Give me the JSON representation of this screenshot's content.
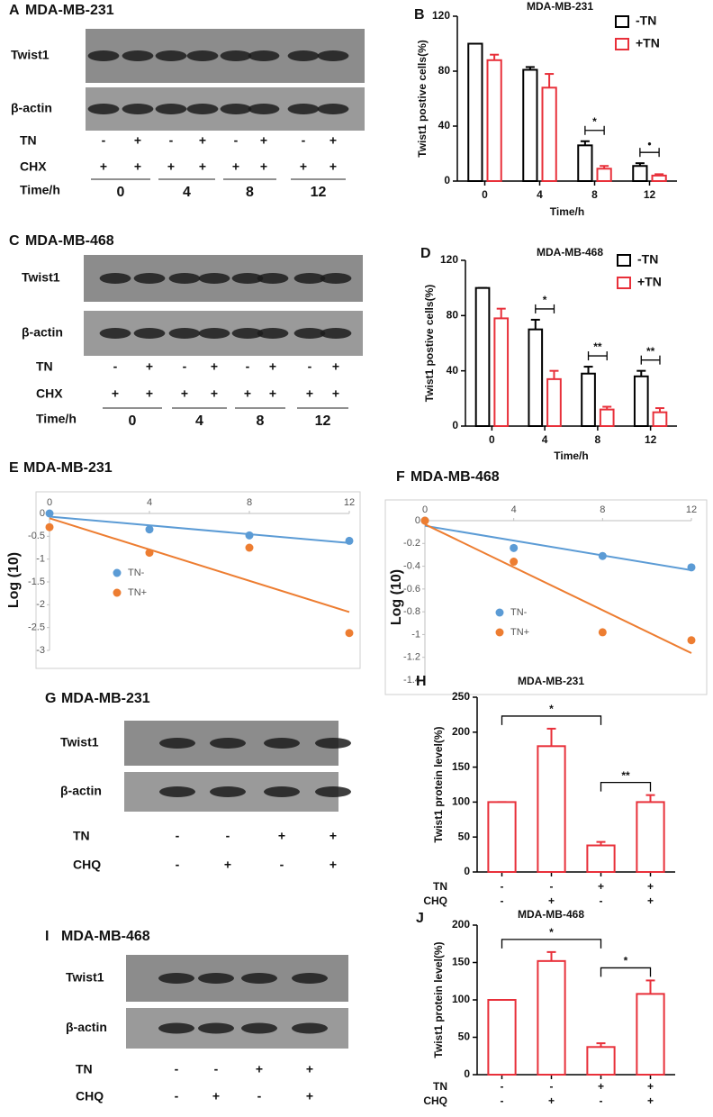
{
  "blots": [
    {
      "panel": "A",
      "title": "MDA-MB-231",
      "bands": [
        "Twist1",
        "β-actin"
      ],
      "rows": [
        {
          "label": "TN",
          "values": [
            "-",
            "+",
            "-",
            "+",
            "-",
            "+",
            "-",
            "+"
          ]
        },
        {
          "label": "CHX",
          "values": [
            "+",
            "+",
            "+",
            "+",
            "+",
            "+",
            "+",
            "+"
          ]
        }
      ],
      "time": {
        "label": "Time/h",
        "values": [
          "0",
          "4",
          "8",
          "12"
        ]
      }
    },
    {
      "panel": "C",
      "title": "MDA-MB-468",
      "bands": [
        "Twist1",
        "β-actin"
      ],
      "rows": [
        {
          "label": "TN",
          "values": [
            "-",
            "+",
            "-",
            "+",
            "-",
            "+",
            "-",
            "+"
          ]
        },
        {
          "label": "CHX",
          "values": [
            "+",
            "+",
            "+",
            "+",
            "+",
            "+",
            "+",
            "+"
          ]
        }
      ],
      "time": {
        "label": "Time/h",
        "values": [
          "0",
          "4",
          "8",
          "12"
        ]
      }
    },
    {
      "panel": "G",
      "title": "MDA-MB-231",
      "bands": [
        "Twist1",
        "β-actin"
      ],
      "rows": [
        {
          "label": "TN",
          "values": [
            "-",
            "-",
            "+",
            "+"
          ]
        },
        {
          "label": "CHQ",
          "values": [
            "-",
            "+",
            "-",
            "+"
          ]
        }
      ]
    },
    {
      "panel": "I",
      "title": "MDA-MB-468",
      "bands": [
        "Twist1",
        "β-actin"
      ],
      "rows": [
        {
          "label": "TN",
          "values": [
            "-",
            "-",
            "+",
            "+"
          ]
        },
        {
          "label": "CHQ",
          "values": [
            "-",
            "+",
            "-",
            "+"
          ]
        }
      ]
    }
  ],
  "chart_data": [
    {
      "type": "bar",
      "panel": "B",
      "title": "MDA-MB-231",
      "y_label": "Twist1 postive cells(%)",
      "x_label": "Time/h",
      "categories": [
        "0",
        "4",
        "8",
        "12"
      ],
      "series": [
        {
          "name": "-TN",
          "color": "#000000",
          "values": [
            100,
            81,
            26,
            11
          ],
          "error": [
            0,
            2,
            3,
            2
          ]
        },
        {
          "name": "+TN",
          "color": "#e8303a",
          "values": [
            88,
            68,
            9,
            4
          ],
          "error": [
            4,
            10,
            2,
            1
          ]
        }
      ],
      "significance": [
        null,
        null,
        "*",
        "•"
      ],
      "ylim": [
        0,
        120
      ],
      "yticks": [
        0,
        40,
        80,
        120
      ]
    },
    {
      "type": "bar",
      "panel": "D",
      "title": "MDA-MB-468",
      "y_label": "Twist1 postive cells(%)",
      "x_label": "Time/h",
      "categories": [
        "0",
        "4",
        "8",
        "12"
      ],
      "series": [
        {
          "name": "-TN",
          "color": "#000000",
          "values": [
            100,
            70,
            38,
            36
          ],
          "error": [
            0,
            7,
            5,
            4
          ]
        },
        {
          "name": "+TN",
          "color": "#e8303a",
          "values": [
            78,
            34,
            12,
            10
          ],
          "error": [
            7,
            6,
            2,
            3
          ]
        }
      ],
      "significance": [
        null,
        "*",
        "**",
        "**"
      ],
      "ylim": [
        0,
        120
      ],
      "yticks": [
        0,
        40,
        80,
        120
      ]
    },
    {
      "type": "scatter",
      "panel": "E",
      "title": "MDA-MB-231",
      "y_label": "Log (10)",
      "x": [
        0,
        4,
        8,
        12
      ],
      "series": [
        {
          "name": "TN-",
          "color": "#5b9bd5",
          "values": [
            0,
            -0.35,
            -0.48,
            -0.6
          ]
        },
        {
          "name": "TN+",
          "color": "#ed7d31",
          "values": [
            -0.3,
            -0.86,
            -0.75,
            -2.62
          ]
        }
      ],
      "trendline": "linear",
      "xlim": [
        0,
        12
      ],
      "xticks": [
        0,
        4,
        8,
        12
      ],
      "ylim": [
        -3,
        0
      ],
      "yticks": [
        0,
        -0.5,
        -1,
        -1.5,
        -2,
        -2.5,
        -3
      ],
      "legend": "lower left"
    },
    {
      "type": "scatter",
      "panel": "F",
      "title": "MDA-MB-468",
      "y_label": "Log (10)",
      "x": [
        0,
        4,
        8,
        12
      ],
      "series": [
        {
          "name": "TN-",
          "color": "#5b9bd5",
          "values": [
            0,
            -0.24,
            -0.31,
            -0.41
          ]
        },
        {
          "name": "TN+",
          "color": "#ed7d31",
          "values": [
            0,
            -0.36,
            -0.98,
            -1.05
          ]
        }
      ],
      "trendline": "linear",
      "xlim": [
        0,
        12
      ],
      "xticks": [
        0,
        4,
        8,
        12
      ],
      "ylim": [
        -1.4,
        0
      ],
      "yticks": [
        0,
        -0.2,
        -0.4,
        -0.6,
        -0.8,
        -1,
        -1.2,
        -1.4
      ],
      "legend": "lower left"
    },
    {
      "type": "bar",
      "panel": "H",
      "title": "MDA-MB-231",
      "y_label": "Twist1 protein level(%)",
      "categories": [
        null,
        null,
        null,
        null
      ],
      "values": [
        100,
        180,
        38,
        100
      ],
      "error": [
        0,
        25,
        5,
        10
      ],
      "color": "#e8303a",
      "x_rows": [
        {
          "label": "TN",
          "values": [
            "-",
            "-",
            "+",
            "+"
          ]
        },
        {
          "label": "CHQ",
          "values": [
            "-",
            "+",
            "-",
            "+"
          ]
        }
      ],
      "brackets": [
        {
          "label": "*",
          "span": [
            0,
            2
          ]
        },
        {
          "label": "**",
          "span": [
            2,
            3
          ]
        }
      ],
      "ylim": [
        0,
        250
      ],
      "yticks": [
        0,
        50,
        100,
        150,
        200,
        250
      ]
    },
    {
      "type": "bar",
      "panel": "J",
      "title": "MDA-MB-468",
      "y_label": "Twist1 protein level(%)",
      "categories": [
        null,
        null,
        null,
        null
      ],
      "values": [
        100,
        152,
        37,
        108
      ],
      "error": [
        0,
        12,
        5,
        18
      ],
      "color": "#e8303a",
      "x_rows": [
        {
          "label": "TN",
          "values": [
            "-",
            "-",
            "+",
            "+"
          ]
        },
        {
          "label": "CHQ",
          "values": [
            "-",
            "+",
            "-",
            "+"
          ]
        }
      ],
      "brackets": [
        {
          "label": "*",
          "span": [
            0,
            2
          ]
        },
        {
          "label": "*",
          "span": [
            2,
            3
          ]
        }
      ],
      "ylim": [
        0,
        200
      ],
      "yticks": [
        0,
        50,
        100,
        150,
        200
      ]
    }
  ]
}
